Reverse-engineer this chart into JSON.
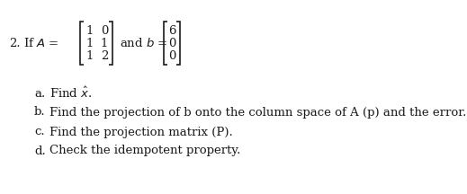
{
  "background_color": "#ffffff",
  "text_color": "#1a1a1a",
  "figsize": [
    5.19,
    2.16
  ],
  "dpi": 100,
  "matrix_A": [
    [
      1,
      0
    ],
    [
      1,
      1
    ],
    [
      1,
      2
    ]
  ],
  "matrix_b": [
    6,
    0,
    0
  ],
  "items": [
    {
      "label": "a.",
      "text": "Find $\\hat{x}$."
    },
    {
      "label": "b.",
      "text": "Find the projection of b onto the column space of A (p) and the error."
    },
    {
      "label": "c.",
      "text": "Find the projection matrix (P)."
    },
    {
      "label": "d.",
      "text": "Check the idempotent property."
    }
  ],
  "main_fontsize": 9.5,
  "item_fontsize": 9.5,
  "serif_font": "DejaVu Serif"
}
